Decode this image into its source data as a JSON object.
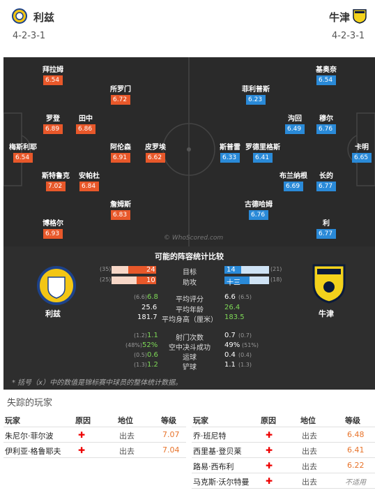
{
  "home": {
    "name": "利兹",
    "formation": "4-2-3-1",
    "crest": "leeds-crest"
  },
  "away": {
    "name": "牛津",
    "formation": "4-2-3-1",
    "crest": "oxford-crest"
  },
  "home_players": [
    {
      "name": "拜拉姆",
      "rating": "6.54"
    },
    {
      "name": "所罗门",
      "rating": "6.72"
    },
    {
      "name": "罗登",
      "rating": "6.89"
    },
    {
      "name": "田中",
      "rating": "6.86"
    },
    {
      "name": "梅斯利耶",
      "rating": "6.54"
    },
    {
      "name": "阿伦森",
      "rating": "6.91"
    },
    {
      "name": "皮罗埃",
      "rating": "6.62"
    },
    {
      "name": "斯特鲁克",
      "rating": "7.02"
    },
    {
      "name": "安帕杜",
      "rating": "6.84"
    },
    {
      "name": "詹姆斯",
      "rating": "6.83"
    },
    {
      "name": "博格尔",
      "rating": "6.93"
    }
  ],
  "away_players": [
    {
      "name": "基奥奈",
      "rating": "6.54"
    },
    {
      "name": "菲利普斯",
      "rating": "6.23"
    },
    {
      "name": "沟回",
      "rating": "6.49"
    },
    {
      "name": "穆尔",
      "rating": "6.76"
    },
    {
      "name": "斯普雷",
      "rating": "6.33"
    },
    {
      "name": "罗德里格斯",
      "rating": "6.41"
    },
    {
      "name": "卡明",
      "rating": "6.65"
    },
    {
      "name": "布兰纳根",
      "rating": "6.69"
    },
    {
      "name": "长的",
      "rating": "6.77"
    },
    {
      "name": "古德哈姆",
      "rating": "6.76"
    },
    {
      "name": "利",
      "rating": "6.77"
    }
  ],
  "watermark": "© WhoScored.com",
  "stats": {
    "title": "可能的阵容统计比较",
    "bars": [
      {
        "label": "目标",
        "home": "24",
        "home_sub": "(35)",
        "away": "14",
        "away_sub": "(21)",
        "home_frac": 0.63,
        "away_frac": 0.37
      },
      {
        "label": "助攻",
        "home": "10",
        "home_sub": "(25)",
        "away": "十三",
        "away_sub": "(18)",
        "home_frac": 0.43,
        "away_frac": 0.57
      }
    ],
    "rows1": [
      {
        "label": "平均评分",
        "home": "6.8",
        "home_sub": "(6.6)",
        "away": "6.6",
        "away_sub": "(6.5)",
        "home_green": true,
        "away_green": false
      },
      {
        "label": "平均年龄",
        "home": "25.6",
        "home_sub": "",
        "away": "26.4",
        "away_sub": "",
        "home_green": false,
        "away_green": true
      },
      {
        "label": "平均身高（厘米）",
        "home": "181.7",
        "home_sub": "",
        "away": "183.5",
        "away_sub": "",
        "home_green": false,
        "away_green": true
      }
    ],
    "rows2": [
      {
        "label": "射门次数",
        "home": "1.1",
        "home_sub": "(1.2)",
        "away": "0.7",
        "away_sub": "(0.7)",
        "home_green": true,
        "away_green": false
      },
      {
        "label": "空中决斗成功",
        "home": "52%",
        "home_sub": "(48%)",
        "away": "49%",
        "away_sub": "(51%)",
        "home_green": true,
        "away_green": false
      },
      {
        "label": "运球",
        "home": "0.6",
        "home_sub": "(0.5)",
        "away": "0.4",
        "away_sub": "(0.4)",
        "home_green": true,
        "away_green": false
      },
      {
        "label": "铲球",
        "home": "1.2",
        "home_sub": "(1.3)",
        "away": "1.1",
        "away_sub": "(1.3)",
        "home_green": true,
        "away_green": false
      }
    ],
    "footnote": "* 括号（x）中的数值是锦标赛中球员的整体统计数据。"
  },
  "missing": {
    "title": "失踪的玩家",
    "headers": [
      "玩家",
      "原因",
      "地位",
      "等级"
    ],
    "home": [
      {
        "name": "朱尼尔·菲尔波",
        "status": "出去",
        "rating": "7.07"
      },
      {
        "name": "伊利亚·格鲁耶夫",
        "status": "出去",
        "rating": "7.04"
      }
    ],
    "away": [
      {
        "name": "乔·班尼特",
        "status": "出去",
        "rating": "6.48"
      },
      {
        "name": "西里基·登贝莱",
        "status": "出去",
        "rating": "6.41"
      },
      {
        "name": "路易·西布利",
        "status": "出去",
        "rating": "6.22"
      },
      {
        "name": "马克斯·沃尔特曼",
        "status": "出去",
        "rating": "不适用"
      }
    ]
  }
}
